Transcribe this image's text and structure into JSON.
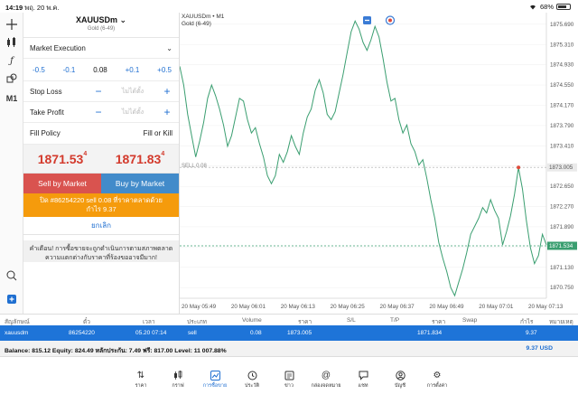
{
  "status_bar": {
    "time": "14:19",
    "date": "พฤ. 20 พ.ค.",
    "battery": "68%"
  },
  "rail": {
    "timeframe": "M1"
  },
  "order_panel": {
    "symbol": "XAUUSDm",
    "symbol_desc": "Gold (6-49)",
    "execution": "Market Execution",
    "volume_steps": [
      "-0.5",
      "-0.1",
      "0.08",
      "+0.1",
      "+0.5"
    ],
    "stop_loss": {
      "label": "Stop Loss",
      "placeholder": "ไม่ได้ตั้ง"
    },
    "take_profit": {
      "label": "Take Profit",
      "placeholder": "ไม่ได้ตั้ง"
    },
    "fill_policy": {
      "label": "Fill Policy",
      "value": "Fill or Kill"
    },
    "bid": {
      "main": "1871.53",
      "pip": "4"
    },
    "ask": {
      "main": "1871.83",
      "pip": "4"
    },
    "sell_label": "Sell by Market",
    "buy_label": "Buy by Market",
    "close_line1": "ปิด #86254220 sell 0.08 ที่ราคาตลาดด้วย",
    "close_line2": "กำไร 9.37",
    "cancel_label": "ยกเลิก",
    "warning": "คำเตือน! การซื้อขายจะถูกดำเนินการตามสภาพตลาด ความแตกต่างกับราคาที่ร้องขออาจมีมาก!"
  },
  "chart": {
    "symbol_line": "XAUUSDm • M1",
    "desc": "Gold (6-49)",
    "sell_marker": "SELL 0.08",
    "current_price_tag": "1871.534",
    "order_price_tag": "1873.005"
  },
  "chart_data": {
    "type": "line",
    "title": "XAUUSDm • M1",
    "x_ticks": [
      "20 May 05:49",
      "20 May 06:01",
      "20 May 06:13",
      "20 May 06:25",
      "20 May 06:37",
      "20 May 06:49",
      "20 May 07:01",
      "20 May 07:13"
    ],
    "y_ticks": [
      "1875.690",
      "1875.310",
      "1874.930",
      "1874.550",
      "1874.170",
      "1873.790",
      "1873.410",
      "1873.030",
      "1872.650",
      "1872.270",
      "1871.890",
      "1871.510",
      "1871.130",
      "1870.750"
    ],
    "ylim": [
      1870.55,
      1875.84
    ],
    "order_price": 1873.005,
    "current_price": 1871.534,
    "series": [
      {
        "values": [
          1874.9,
          1874.55,
          1874.0,
          1873.6,
          1873.2,
          1873.5,
          1873.85,
          1874.3,
          1874.55,
          1874.35,
          1874.1,
          1873.8,
          1873.4,
          1873.6,
          1873.95,
          1874.3,
          1874.25,
          1873.9,
          1873.65,
          1873.75,
          1873.45,
          1873.2,
          1872.85,
          1872.7,
          1872.85,
          1873.25,
          1873.1,
          1873.3,
          1873.6,
          1873.4,
          1873.25,
          1873.65,
          1873.95,
          1874.1,
          1874.45,
          1874.65,
          1874.4,
          1874.0,
          1873.9,
          1874.05,
          1874.4,
          1874.75,
          1875.15,
          1875.55,
          1875.75,
          1875.6,
          1875.35,
          1875.2,
          1875.4,
          1875.65,
          1875.45,
          1875.05,
          1874.6,
          1874.25,
          1874.3,
          1873.9,
          1873.65,
          1873.8,
          1873.45,
          1873.3,
          1873.05,
          1873.15,
          1872.8,
          1872.4,
          1872.05,
          1871.6,
          1871.3,
          1871.05,
          1870.75,
          1870.6,
          1870.85,
          1871.1,
          1871.4,
          1871.75,
          1871.9,
          1872.05,
          1872.25,
          1872.15,
          1872.4,
          1872.2,
          1872.05,
          1871.55,
          1871.8,
          1872.1,
          1872.5,
          1873.0,
          1872.6,
          1872.0,
          1871.5,
          1871.2,
          1871.35,
          1871.75,
          1871.55
        ]
      }
    ]
  },
  "positions": {
    "headers": [
      "สัญลักษณ์",
      "ตั๋ว",
      "เวลา",
      "ประเภท",
      "Volume",
      "ราคา",
      "S/L",
      "T/P",
      "ราคา",
      "Swap",
      "กำไร",
      "หมายเหตุ"
    ],
    "row": {
      "symbol": "xauusdm",
      "ticket": "86254220",
      "time": "05.20 07:14",
      "type": "sell",
      "volume": "0.08",
      "open_price": "1873.005",
      "price": "1871.834",
      "profit": "9.37"
    },
    "balance_line": "Balance: 815.12 Equity: 824.49 หลักประกัน: 7.49 ฟรี: 817.00 Level: 11 007.88%",
    "total_profit": "9.37  USD"
  },
  "tabs": [
    {
      "label": "ราคา",
      "icon": "arrows-updown-icon"
    },
    {
      "label": "กราฟ",
      "icon": "candles-icon"
    },
    {
      "label": "การซื้อขาย",
      "icon": "trade-chart-icon"
    },
    {
      "label": "ประวัติ",
      "icon": "history-clock-icon"
    },
    {
      "label": "ข่าว",
      "icon": "news-icon"
    },
    {
      "label": "กล่องจดหมาย",
      "icon": "at-mail-icon"
    },
    {
      "label": "แชท",
      "icon": "chat-icon"
    },
    {
      "label": "บัญชี",
      "icon": "account-icon"
    },
    {
      "label": "การตั้งค่า",
      "icon": "settings-gear-icon"
    }
  ],
  "colors": {
    "accent": "#1f6fd1",
    "sell": "#d9534f",
    "buy": "#428bca",
    "close_bar": "#f59b0c",
    "price_red": "#d33a2c",
    "line": "#3a9e70"
  }
}
